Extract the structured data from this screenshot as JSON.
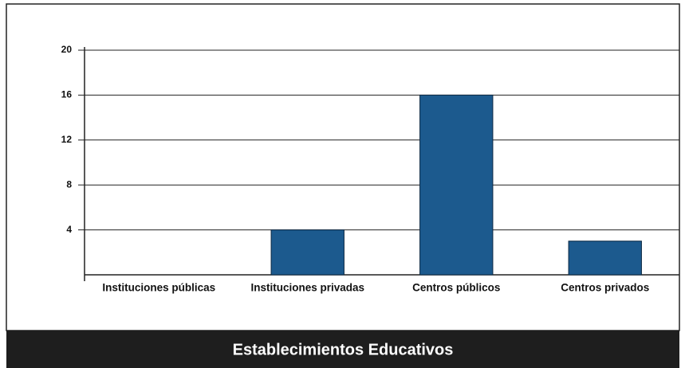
{
  "chart_data": {
    "type": "bar",
    "title": "Establecimientos Educativos",
    "categories": [
      "Instituciones públicas",
      "Instituciones privadas",
      "Centros públicos",
      "Centros privados"
    ],
    "values": [
      0,
      4,
      16,
      3
    ],
    "color": "#1c5a8e",
    "ylim": [
      0,
      20
    ],
    "yticks": [
      4,
      8,
      12,
      16,
      20
    ],
    "grid": true
  }
}
